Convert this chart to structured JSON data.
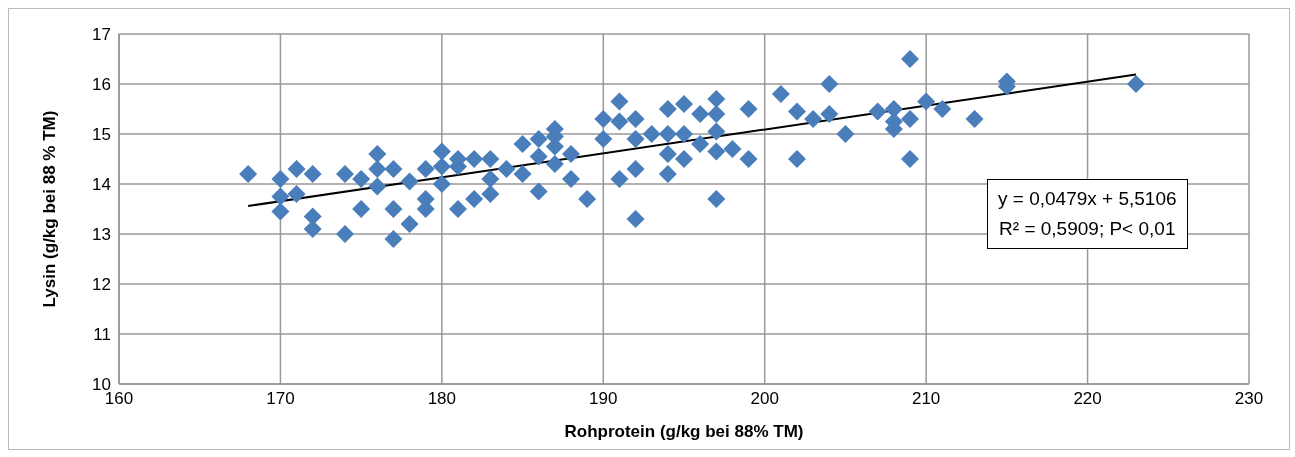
{
  "chart_data": {
    "type": "scatter",
    "xlabel": "Rohprotein (g/kg bei 88% TM)",
    "ylabel": "Lysin (g/kg bei 88 % TM)",
    "xlim": [
      160,
      230
    ],
    "xticks": [
      160,
      170,
      180,
      190,
      200,
      210,
      220,
      230
    ],
    "ylim": [
      10,
      17
    ],
    "yticks": [
      10,
      11,
      12,
      13,
      14,
      15,
      16,
      17
    ],
    "grid": true,
    "marker": "diamond",
    "annotations": [
      "y = 0,0479x + 5,5106",
      "R² = 0,5909; P< 0,01"
    ],
    "series": [
      {
        "color": "#4a7ebb",
        "x": [
          168,
          170,
          170,
          170,
          171,
          171,
          172,
          172,
          172,
          174,
          174,
          175,
          175,
          176,
          176,
          176,
          177,
          177,
          177,
          178,
          178,
          179,
          179,
          179,
          180,
          180,
          180,
          181,
          181,
          181,
          182,
          182,
          183,
          183,
          183,
          184,
          185,
          185,
          186,
          186,
          186,
          187,
          187,
          187,
          187,
          188,
          188,
          189,
          190,
          190,
          191,
          191,
          191,
          192,
          192,
          192,
          192,
          193,
          194,
          194,
          194,
          194,
          195,
          195,
          195,
          196,
          196,
          197,
          197,
          197,
          197,
          197,
          198,
          199,
          199,
          201,
          202,
          202,
          203,
          204,
          204,
          205,
          207,
          208,
          208,
          208,
          209,
          209,
          209,
          210,
          211,
          213,
          215,
          215,
          223
        ],
        "values": [
          14.2,
          14.1,
          13.75,
          13.45,
          14.3,
          13.8,
          14.2,
          13.35,
          13.1,
          14.2,
          13.0,
          14.1,
          13.5,
          14.6,
          14.3,
          13.95,
          14.3,
          13.5,
          12.9,
          14.05,
          13.2,
          14.3,
          13.7,
          13.5,
          14.65,
          14.35,
          14.0,
          14.5,
          14.35,
          13.5,
          14.5,
          13.7,
          14.5,
          14.1,
          13.8,
          14.3,
          14.8,
          14.2,
          14.9,
          14.55,
          13.85,
          15.1,
          14.95,
          14.75,
          14.4,
          14.6,
          14.1,
          13.7,
          15.3,
          14.9,
          15.65,
          15.25,
          14.1,
          15.3,
          14.9,
          14.3,
          13.3,
          15.0,
          15.5,
          15.0,
          14.6,
          14.2,
          15.6,
          15.0,
          14.5,
          15.4,
          14.8,
          15.7,
          15.4,
          15.05,
          14.65,
          13.7,
          14.7,
          15.5,
          14.5,
          15.8,
          15.45,
          14.5,
          15.3,
          16.0,
          15.4,
          15.0,
          15.45,
          15.5,
          15.25,
          15.1,
          16.5,
          15.3,
          14.5,
          15.65,
          15.5,
          15.3,
          16.05,
          15.95,
          16.0
        ]
      },
      {
        "type": "line",
        "marker": "none",
        "color": "#000000",
        "x": [
          168,
          223
        ],
        "values": [
          13.56,
          16.19
        ]
      }
    ]
  }
}
